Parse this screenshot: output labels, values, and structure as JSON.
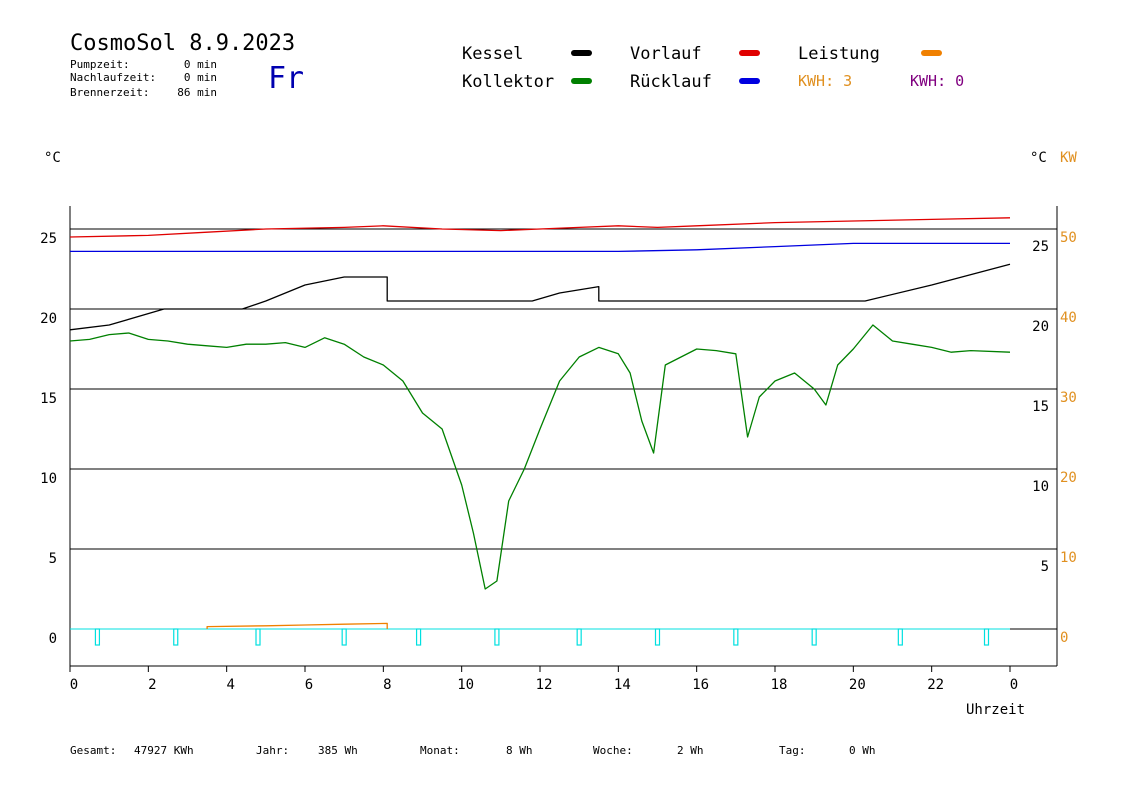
{
  "header": {
    "title": "CosmoSol 8.9.2023",
    "day": "Fr",
    "stats": [
      {
        "label": "Pumpzeit:",
        "value": "0 min"
      },
      {
        "label": "Nachlaufzeit:",
        "value": "0 min"
      },
      {
        "label": "Brennerzeit:",
        "value": "86 min"
      }
    ]
  },
  "legend": [
    {
      "label": "Kessel",
      "color": "#000000",
      "swatch": true
    },
    {
      "label": "Vorlauf",
      "color": "#e00000",
      "swatch": true
    },
    {
      "label": "Leistung",
      "color": "#f08000",
      "swatch": true
    },
    {
      "label": "Kollektor",
      "color": "#008000",
      "swatch": true
    },
    {
      "label": "Rücklauf",
      "color": "#0000e0",
      "swatch": true
    },
    {
      "label": "KWH: 3",
      "color": "#e09020",
      "swatch": false
    },
    {
      "label": "KWH: 0",
      "color": "#800080",
      "swatch": false
    }
  ],
  "axes": {
    "left_unit": "°C",
    "right_unit": "°C",
    "right_unit2": "KW",
    "xlabel": "Uhrzeit"
  },
  "footer": [
    {
      "label": "Gesamt:",
      "value": "47927 KWh"
    },
    {
      "label": "Jahr:",
      "value": "385 Wh"
    },
    {
      "label": "Monat:",
      "value": "8 Wh"
    },
    {
      "label": "Woche:",
      "value": "2 Wh"
    },
    {
      "label": "Tag:",
      "value": "0 Wh"
    }
  ],
  "chart_data": {
    "type": "line",
    "title": "CosmoSol 8.9.2023",
    "xlabel": "Uhrzeit",
    "ylabel": "°C",
    "xlim": [
      0,
      24
    ],
    "ylim": [
      -2,
      27
    ],
    "y2lim": [
      -4,
      54
    ],
    "grid": true,
    "x_ticks": [
      "0",
      "2",
      "4",
      "6",
      "8",
      "10",
      "12",
      "14",
      "16",
      "18",
      "20",
      "22",
      "0"
    ],
    "y_ticks_left": [
      "0",
      "5",
      "10",
      "15",
      "20",
      "25"
    ],
    "y_ticks_right_inner": [
      "5",
      "10",
      "15",
      "20",
      "25"
    ],
    "y_ticks_right_outer": [
      "0",
      "10",
      "20",
      "30",
      "40",
      "50"
    ],
    "series": [
      {
        "name": "Vorlauf",
        "color": "#e00000",
        "x": [
          0,
          2,
          3.5,
          5,
          7,
          8,
          9.5,
          11,
          12,
          13,
          14,
          15,
          16,
          18,
          20,
          22,
          24
        ],
        "y": [
          24.5,
          24.6,
          24.8,
          25.0,
          25.1,
          25.2,
          25.0,
          24.9,
          25.0,
          25.1,
          25.2,
          25.1,
          25.2,
          25.4,
          25.5,
          25.6,
          25.7
        ]
      },
      {
        "name": "Rücklauf",
        "color": "#0000e0",
        "x": [
          0,
          2,
          4,
          6,
          8,
          10,
          12,
          14,
          16,
          18,
          20,
          22,
          24
        ],
        "y": [
          23.6,
          23.6,
          23.6,
          23.6,
          23.6,
          23.6,
          23.6,
          23.6,
          23.7,
          23.9,
          24.1,
          24.1,
          24.1
        ]
      },
      {
        "name": "Kessel",
        "color": "#000000",
        "x": [
          0,
          1,
          2.4,
          4.4,
          5,
          6,
          7,
          8.1,
          8.1,
          9,
          10,
          11.8,
          12.5,
          13.5,
          13.5,
          15,
          20.2,
          20.3,
          22,
          24
        ],
        "y": [
          18.7,
          19.0,
          20.0,
          20.0,
          20.5,
          21.5,
          22.0,
          22.0,
          20.5,
          20.5,
          20.5,
          20.5,
          21.0,
          21.4,
          20.5,
          20.5,
          20.5,
          20.5,
          21.5,
          22.8
        ]
      },
      {
        "name": "Kollektor",
        "color": "#008000",
        "x": [
          0,
          0.5,
          1,
          1.5,
          2,
          2.5,
          3,
          3.5,
          4,
          4.5,
          5,
          5.5,
          6,
          6.5,
          7,
          7.5,
          8,
          8.5,
          9,
          9.5,
          10,
          10.3,
          10.6,
          10.9,
          11.2,
          11.6,
          12,
          12.5,
          13,
          13.5,
          14,
          14.3,
          14.6,
          14.9,
          15.2,
          16,
          16.5,
          17,
          17.3,
          17.6,
          18,
          18.5,
          19,
          19.3,
          19.6,
          20,
          20.5,
          21,
          21.5,
          22,
          22.5,
          23,
          24
        ],
        "y": [
          18.0,
          18.1,
          18.4,
          18.5,
          18.1,
          18.0,
          17.8,
          17.7,
          17.6,
          17.8,
          17.8,
          17.9,
          17.6,
          18.2,
          17.8,
          17.0,
          16.5,
          15.5,
          13.5,
          12.5,
          9.0,
          6.0,
          2.5,
          3.0,
          8.0,
          10.0,
          12.5,
          15.5,
          17.0,
          17.6,
          17.2,
          16.0,
          13.0,
          11.0,
          16.5,
          17.5,
          17.4,
          17.2,
          12.0,
          14.5,
          15.5,
          16.0,
          15.0,
          14.0,
          16.5,
          17.5,
          19.0,
          18.0,
          17.8,
          17.6,
          17.3,
          17.4,
          17.3
        ]
      },
      {
        "name": "Leistung",
        "color": "#f08000",
        "x": [
          3.5,
          3.5,
          5,
          6,
          7,
          8.1,
          8.1
        ],
        "y": [
          0,
          0.15,
          0.2,
          0.25,
          0.3,
          0.35,
          0
        ]
      }
    ],
    "pump_markers_x": [
      0.7,
      2.7,
      4.8,
      7.0,
      8.9,
      10.9,
      13.0,
      15.0,
      17.0,
      19.0,
      21.2,
      23.4
    ],
    "pump_marker_color": "#00e0e0",
    "accent_right_axis_color": "#e09020"
  }
}
